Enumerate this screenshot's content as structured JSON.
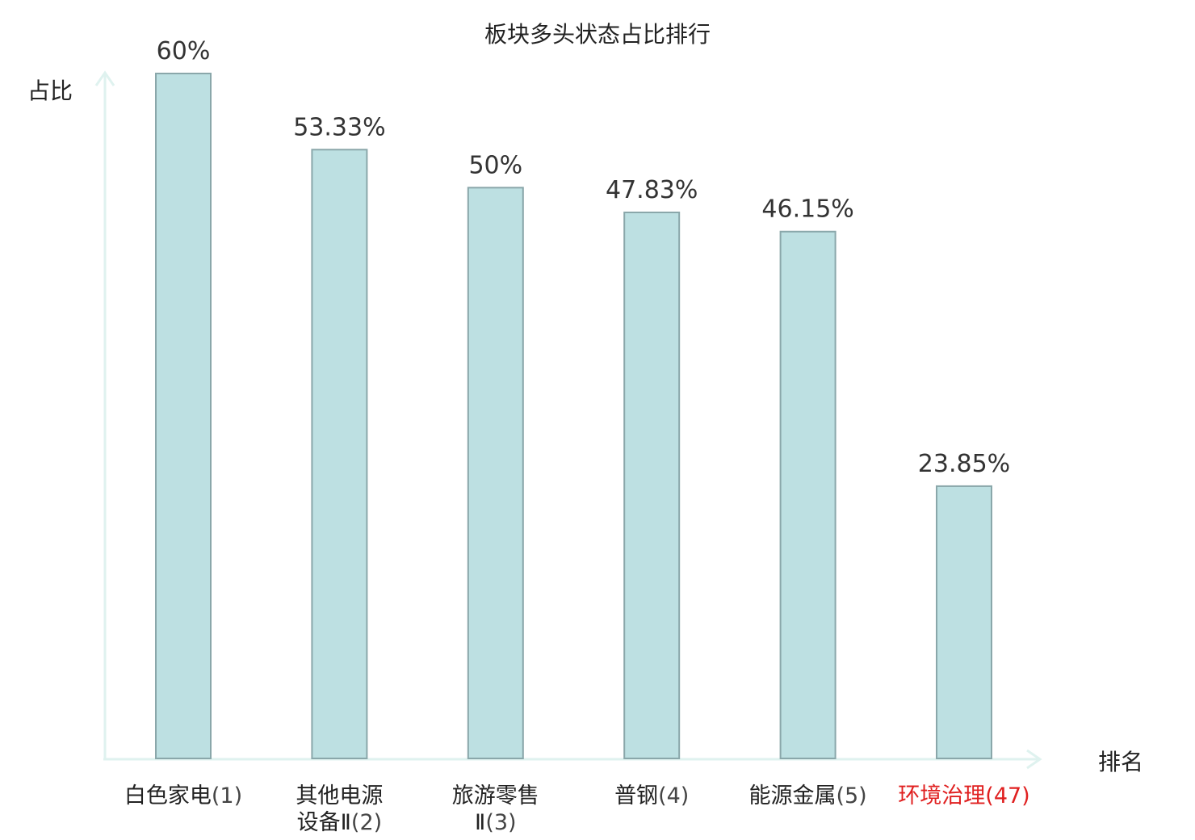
{
  "chart_data": {
    "type": "bar",
    "title": "板块多头状态占比排行",
    "ylabel": "占比",
    "xlabel": "排名",
    "ylim": [
      0,
      60
    ],
    "grid": false,
    "categories": [
      {
        "name_lines": [
          "白色家电"
        ],
        "rank": "(1)",
        "highlight": false
      },
      {
        "name_lines": [
          "其他电源",
          "设备Ⅱ"
        ],
        "rank": "(2)",
        "highlight": false
      },
      {
        "name_lines": [
          "旅游零售",
          "Ⅱ"
        ],
        "rank": "(3)",
        "highlight": false
      },
      {
        "name_lines": [
          "普钢"
        ],
        "rank": "(4)",
        "highlight": false
      },
      {
        "name_lines": [
          "能源金属"
        ],
        "rank": "(5)",
        "highlight": false
      },
      {
        "name_lines": [
          "环境治理"
        ],
        "rank": "(47)",
        "highlight": true
      }
    ],
    "values": [
      60,
      53.33,
      50,
      47.83,
      46.15,
      23.85
    ],
    "value_labels": [
      "60%",
      "53.33%",
      "50%",
      "47.83%",
      "46.15%",
      "23.85%"
    ],
    "colors": {
      "bar_fill": "#bde0e2",
      "bar_stroke": "#8aa7aa",
      "axis": "#dff2ef",
      "highlight_text": "#e02020"
    }
  }
}
